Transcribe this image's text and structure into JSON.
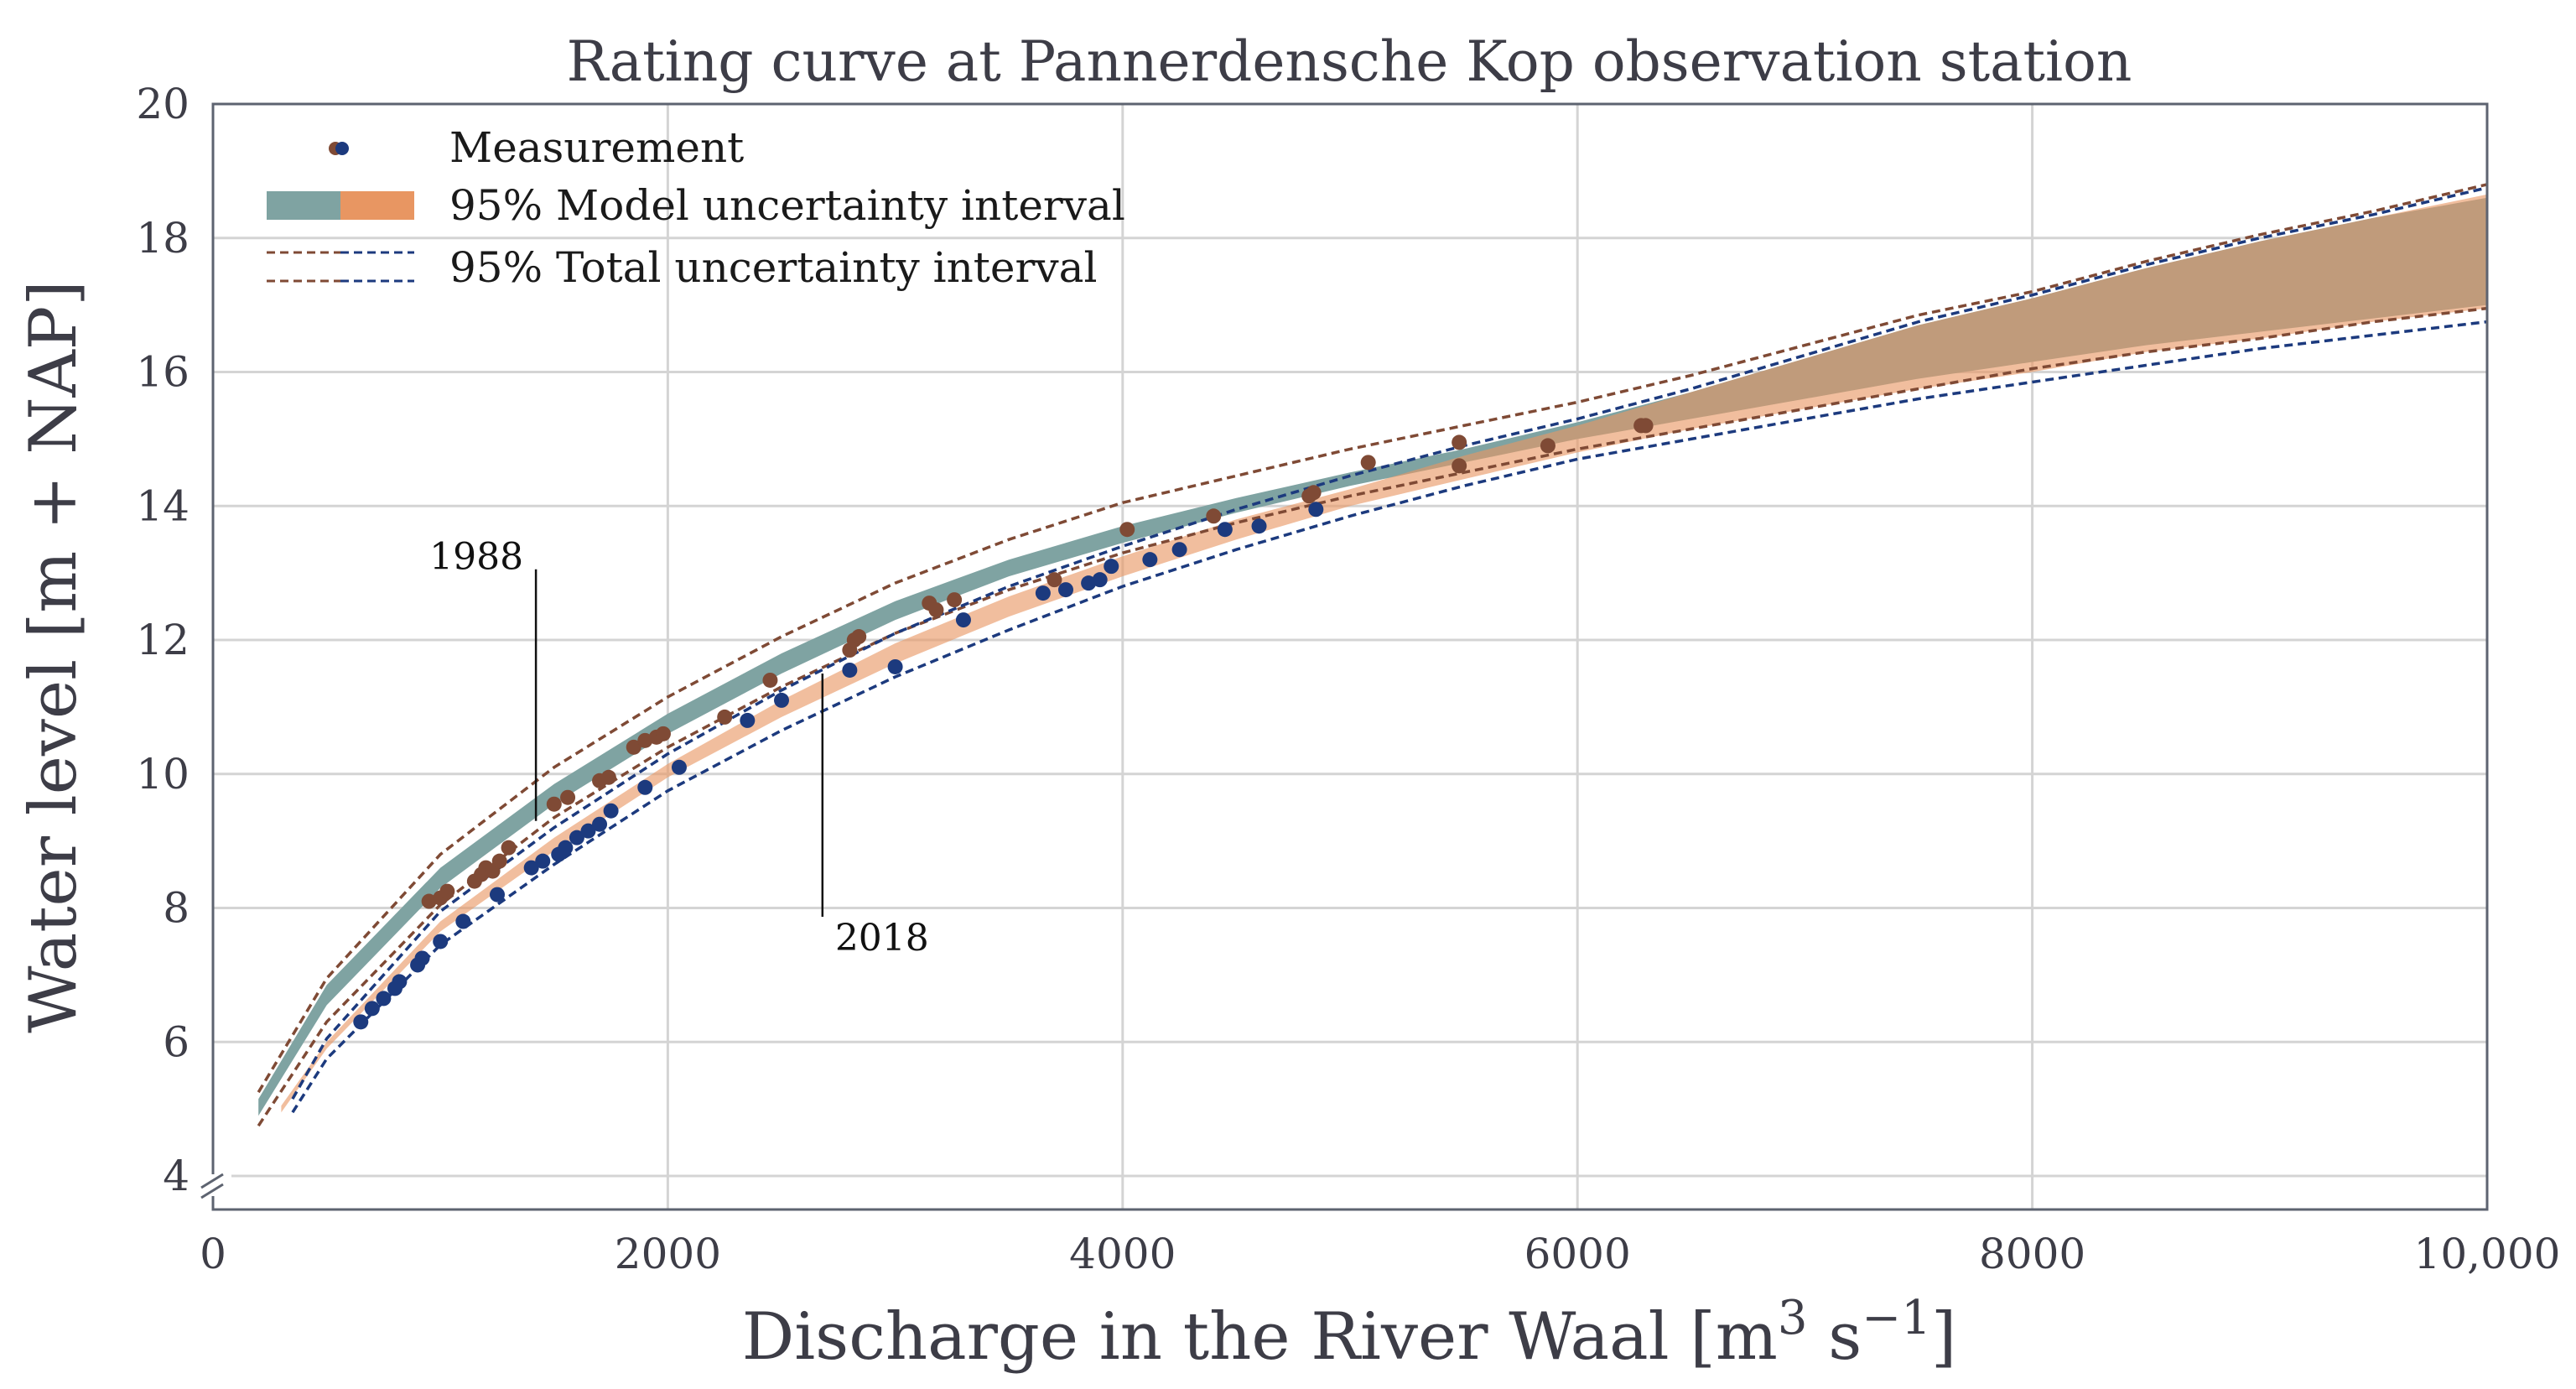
{
  "chart_data": {
    "type": "scatter",
    "title": "Rating curve at Pannerdensche Kop observation station",
    "xlabel": "Discharge in the River Waal [m",
    "xlabel_sup1": "3",
    "xlabel_mid": " s",
    "xlabel_sup2": "−1",
    "xlabel_end": "]",
    "ylabel": "Water level [m + NAP]",
    "xlim": [
      0,
      10000
    ],
    "ylim": [
      3.5,
      20
    ],
    "grid": true,
    "x_ticks": [
      0,
      2000,
      4000,
      6000,
      8000,
      10000
    ],
    "x_tick_labels": [
      "0",
      "2000",
      "4000",
      "6000",
      "8000",
      "10,000"
    ],
    "y_ticks": [
      4,
      6,
      8,
      10,
      12,
      14,
      16,
      18,
      20
    ],
    "y_tick_labels": [
      "4",
      "6",
      "8",
      "10",
      "12",
      "14",
      "16",
      "18",
      "20"
    ],
    "legend": {
      "position": "top-left",
      "entries": [
        "Measurement",
        "95% Model uncertainty interval",
        "95% Total uncertainty interval"
      ]
    },
    "annotations": [
      {
        "text": "1988",
        "x": 1420,
        "y": 9.3
      },
      {
        "text": "2018",
        "x": 2680,
        "y": 11.5
      }
    ],
    "colors": {
      "brown": "#7f4a35",
      "blue": "#1c3a7e",
      "teal": "#7fa3a2",
      "orange": "#e89662",
      "overlap": "#bc7d4e"
    },
    "series": [
      {
        "name": "1988 model interval",
        "x": [
          200,
          500,
          1000,
          1500,
          2000,
          2500,
          3000,
          3500,
          4000,
          4500,
          5000,
          5500,
          6000,
          6500,
          7000,
          7500,
          8000,
          8500,
          9000,
          9500,
          10000
        ],
        "lower": [
          4.9,
          6.55,
          8.3,
          9.55,
          10.6,
          11.5,
          12.3,
          12.95,
          13.45,
          13.9,
          14.3,
          14.65,
          15.0,
          15.3,
          15.6,
          15.9,
          16.15,
          16.4,
          16.6,
          16.8,
          17.0
        ],
        "upper": [
          5.15,
          6.85,
          8.6,
          9.85,
          10.9,
          11.8,
          12.58,
          13.2,
          13.7,
          14.12,
          14.5,
          14.85,
          15.25,
          15.7,
          16.2,
          16.7,
          17.1,
          17.55,
          17.95,
          18.3,
          18.6
        ]
      },
      {
        "name": "2018 model interval",
        "x": [
          300,
          500,
          1000,
          1500,
          2000,
          2500,
          3000,
          3500,
          4000,
          4500,
          5000,
          5500,
          6000,
          6500,
          7000,
          7500,
          8000,
          8500,
          9000,
          9500,
          10000
        ],
        "lower": [
          4.95,
          5.9,
          7.65,
          8.85,
          9.95,
          10.85,
          11.65,
          12.35,
          12.95,
          13.5,
          14.0,
          14.4,
          14.8,
          15.15,
          15.45,
          15.75,
          16.0,
          16.3,
          16.5,
          16.75,
          16.95
        ],
        "upper": [
          5.05,
          6.0,
          7.8,
          9.05,
          10.15,
          11.1,
          11.95,
          12.65,
          13.25,
          13.8,
          14.25,
          14.75,
          15.2,
          15.7,
          16.2,
          16.7,
          17.1,
          17.55,
          17.95,
          18.3,
          18.65
        ]
      },
      {
        "name": "1988 total interval",
        "x": [
          200,
          500,
          1000,
          1500,
          2000,
          2500,
          3000,
          3500,
          4000,
          4500,
          5000,
          5500,
          6000,
          6500,
          7000,
          7500,
          8000,
          8500,
          9000,
          9500,
          10000
        ],
        "lower": [
          4.75,
          6.3,
          8.05,
          9.35,
          10.4,
          11.3,
          12.1,
          12.75,
          13.3,
          13.75,
          14.15,
          14.5,
          14.85,
          15.15,
          15.45,
          15.75,
          16.05,
          16.3,
          16.5,
          16.75,
          16.95
        ],
        "upper": [
          5.25,
          6.95,
          8.8,
          10.1,
          11.15,
          12.05,
          12.85,
          13.5,
          14.05,
          14.45,
          14.85,
          15.2,
          15.55,
          15.95,
          16.4,
          16.85,
          17.2,
          17.65,
          18.05,
          18.4,
          18.8
        ]
      },
      {
        "name": "2018 total interval",
        "x": [
          350,
          500,
          1000,
          1500,
          2000,
          2500,
          3000,
          3500,
          4000,
          4500,
          5000,
          5500,
          6000,
          6500,
          7000,
          7500,
          8000,
          8500,
          9000,
          9500,
          10000
        ],
        "lower": [
          4.95,
          5.75,
          7.45,
          8.65,
          9.75,
          10.65,
          11.45,
          12.15,
          12.8,
          13.35,
          13.85,
          14.3,
          14.7,
          15.0,
          15.3,
          15.6,
          15.85,
          16.1,
          16.35,
          16.55,
          16.75
        ],
        "upper": [
          5.15,
          6.05,
          7.95,
          9.2,
          10.3,
          11.25,
          12.1,
          12.8,
          13.4,
          13.95,
          14.45,
          14.9,
          15.3,
          15.75,
          16.25,
          16.75,
          17.15,
          17.6,
          18.0,
          18.35,
          18.75
        ]
      },
      {
        "name": "Measurement 1988",
        "points": [
          [
            950,
            8.1
          ],
          [
            1000,
            8.15
          ],
          [
            1030,
            8.25
          ],
          [
            1150,
            8.4
          ],
          [
            1180,
            8.5
          ],
          [
            1200,
            8.6
          ],
          [
            1230,
            8.55
          ],
          [
            1260,
            8.7
          ],
          [
            1300,
            8.9
          ],
          [
            1500,
            9.55
          ],
          [
            1560,
            9.65
          ],
          [
            1700,
            9.9
          ],
          [
            1740,
            9.95
          ],
          [
            1850,
            10.4
          ],
          [
            1900,
            10.5
          ],
          [
            1950,
            10.55
          ],
          [
            1980,
            10.6
          ],
          [
            2250,
            10.85
          ],
          [
            2450,
            11.4
          ],
          [
            2800,
            11.85
          ],
          [
            2820,
            12.0
          ],
          [
            2840,
            12.05
          ],
          [
            3150,
            12.55
          ],
          [
            3180,
            12.45
          ],
          [
            3260,
            12.6
          ],
          [
            3700,
            12.9
          ],
          [
            4020,
            13.65
          ],
          [
            4400,
            13.85
          ],
          [
            4820,
            14.15
          ],
          [
            4840,
            14.2
          ],
          [
            5080,
            14.65
          ],
          [
            5480,
            14.95
          ],
          [
            5480,
            14.6
          ],
          [
            5870,
            14.9
          ],
          [
            6280,
            15.2
          ],
          [
            6300,
            15.2
          ]
        ]
      },
      {
        "name": "Measurement 2018",
        "points": [
          [
            650,
            6.3
          ],
          [
            700,
            6.5
          ],
          [
            750,
            6.65
          ],
          [
            800,
            6.8
          ],
          [
            820,
            6.9
          ],
          [
            900,
            7.15
          ],
          [
            920,
            7.25
          ],
          [
            1000,
            7.5
          ],
          [
            1100,
            7.8
          ],
          [
            1250,
            8.2
          ],
          [
            1400,
            8.6
          ],
          [
            1450,
            8.7
          ],
          [
            1520,
            8.8
          ],
          [
            1550,
            8.9
          ],
          [
            1600,
            9.05
          ],
          [
            1650,
            9.15
          ],
          [
            1700,
            9.25
          ],
          [
            1750,
            9.45
          ],
          [
            1900,
            9.8
          ],
          [
            2050,
            10.1
          ],
          [
            2350,
            10.8
          ],
          [
            2500,
            11.1
          ],
          [
            2800,
            11.55
          ],
          [
            3000,
            11.6
          ],
          [
            3300,
            12.3
          ],
          [
            3650,
            12.7
          ],
          [
            3750,
            12.75
          ],
          [
            3850,
            12.85
          ],
          [
            3900,
            12.9
          ],
          [
            3950,
            13.1
          ],
          [
            4120,
            13.2
          ],
          [
            4250,
            13.35
          ],
          [
            4450,
            13.65
          ],
          [
            4600,
            13.7
          ],
          [
            4850,
            13.95
          ]
        ]
      }
    ]
  }
}
